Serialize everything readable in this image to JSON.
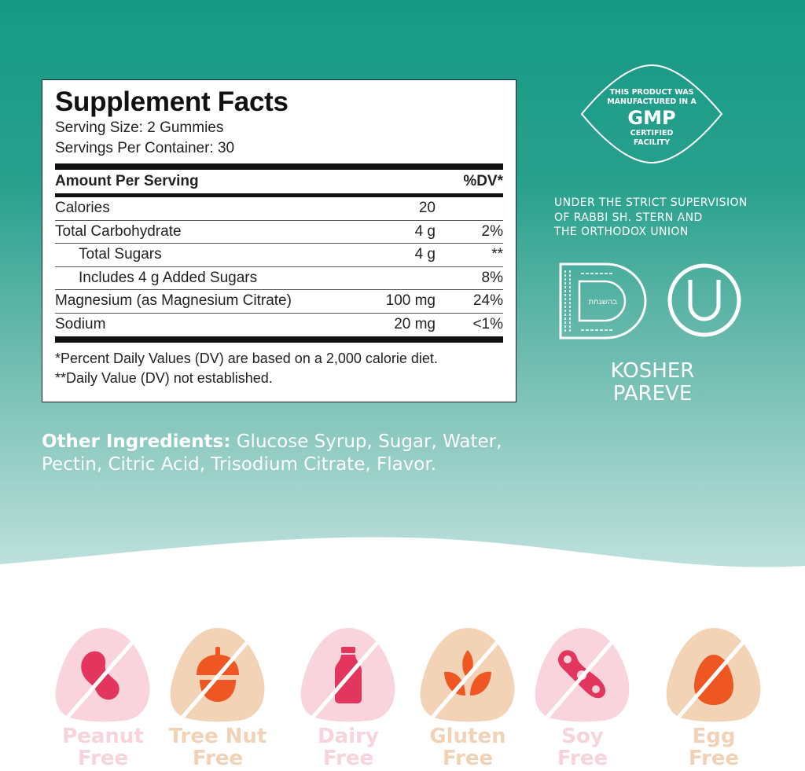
{
  "supplement_facts": {
    "title": "Supplement Facts",
    "serving_size": "Serving Size: 2 Gummies",
    "servings_per_container": "Servings Per Container: 30",
    "header": {
      "amount": "Amount Per Serving",
      "dv": "%DV*"
    },
    "rows": [
      {
        "name": "Calories",
        "amount": "20",
        "dv": ""
      },
      {
        "name": "Total Carbohydrate",
        "amount": "4 g",
        "dv": "2%"
      },
      {
        "name": "Total Sugars",
        "amount": "4 g",
        "dv": "**"
      },
      {
        "name": "Includes 4 g Added Sugars",
        "amount": "",
        "dv": "8%"
      },
      {
        "name": "Magnesium (as Magnesium Citrate)",
        "amount": "100 mg",
        "dv": "24%"
      },
      {
        "name": "Sodium",
        "amount": "20 mg",
        "dv": "<1%"
      }
    ],
    "footnote1": "*Percent Daily Values (DV) are based on a 2,000 calorie diet.",
    "footnote2": "**Daily Value (DV) not established."
  },
  "ingredients": {
    "label": "Other Ingredients:",
    "text": " Glucose Syrup, Sugar, Water, Pectin, Citric Acid, Trisodium Citrate, Flavor."
  },
  "gmp": {
    "line1": "THIS PRODUCT WAS",
    "line2": "MANUFACTURED IN A",
    "big": "GMP",
    "line3": "CERTIFIED",
    "line4": "FACILITY"
  },
  "supervision": [
    "UNDER THE STRICT SUPERVISION",
    "OF RABBI SH. STERN AND",
    "THE ORTHODOX UNION"
  ],
  "kosher": {
    "line1": "KOSHER",
    "line2": "PAREVE",
    "d_logo_text": "בהשגחת"
  },
  "allergens": [
    {
      "line1": "Peanut",
      "line2": "Free",
      "icon": "peanut-icon",
      "bg": "#f9d4dd",
      "fg": "#e2365f",
      "text": "#f7d3db"
    },
    {
      "line1": "Tree Nut",
      "line2": "Free",
      "icon": "acorn-icon",
      "bg": "#f3d3b6",
      "fg": "#ee5722",
      "text": "#f1d2b6"
    },
    {
      "line1": "Dairy",
      "line2": "Free",
      "icon": "milk-bottle-icon",
      "bg": "#f9d4dd",
      "fg": "#e2365f",
      "text": "#f7d3db"
    },
    {
      "line1": "Gluten",
      "line2": "Free",
      "icon": "wheat-icon",
      "bg": "#f3d3b6",
      "fg": "#ee5722",
      "text": "#f1d2b6"
    },
    {
      "line1": "Soy",
      "line2": "Free",
      "icon": "soybean-icon",
      "bg": "#f9d4dd",
      "fg": "#e2365f",
      "text": "#f7d3db"
    },
    {
      "line1": "Egg",
      "line2": "Free",
      "icon": "egg-icon",
      "bg": "#f3d3b6",
      "fg": "#ee5722",
      "text": "#f1d2b6"
    }
  ]
}
